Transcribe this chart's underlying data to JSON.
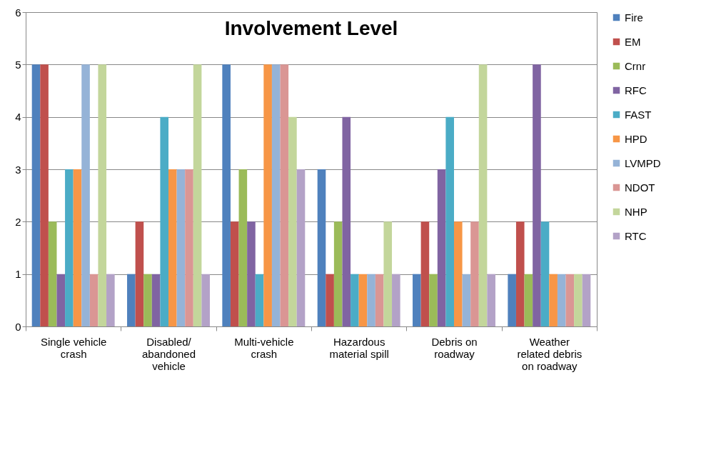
{
  "chart_data": {
    "type": "bar",
    "title": "Involvement Level",
    "categories": [
      "Single vehicle crash",
      "Disabled/ abandoned vehicle",
      "Multi-vehicle crash",
      "Hazardous material spill",
      "Debris on roadway",
      "Weather related debris on roadway"
    ],
    "series": [
      {
        "name": "Fire",
        "color": "#4f81bd",
        "values": [
          5,
          1,
          5,
          3,
          1,
          1
        ]
      },
      {
        "name": "EM",
        "color": "#c0504d",
        "values": [
          5,
          2,
          2,
          1,
          2,
          2
        ]
      },
      {
        "name": "Crnr",
        "color": "#9bbb59",
        "values": [
          2,
          1,
          3,
          2,
          1,
          1
        ]
      },
      {
        "name": "RFC",
        "color": "#8064a2",
        "values": [
          1,
          1,
          2,
          4,
          3,
          5
        ]
      },
      {
        "name": "FAST",
        "color": "#4bacc6",
        "values": [
          3,
          4,
          1,
          1,
          4,
          2
        ]
      },
      {
        "name": "HPD",
        "color": "#f79646",
        "values": [
          3,
          3,
          5,
          1,
          2,
          1
        ]
      },
      {
        "name": "LVMPD",
        "color": "#95b3d7",
        "values": [
          5,
          3,
          5,
          1,
          1,
          1
        ]
      },
      {
        "name": "NDOT",
        "color": "#da9694",
        "values": [
          1,
          3,
          5,
          1,
          2,
          1
        ]
      },
      {
        "name": "NHP",
        "color": "#c3d69b",
        "values": [
          5,
          5,
          4,
          2,
          5,
          1
        ]
      },
      {
        "name": "RTC",
        "color": "#b3a2c7",
        "values": [
          1,
          1,
          3,
          1,
          1,
          1
        ]
      }
    ],
    "ylim": [
      0,
      6
    ],
    "yticks": [
      0,
      1,
      2,
      3,
      4,
      5,
      6
    ],
    "grid": "y",
    "legend": "right"
  }
}
